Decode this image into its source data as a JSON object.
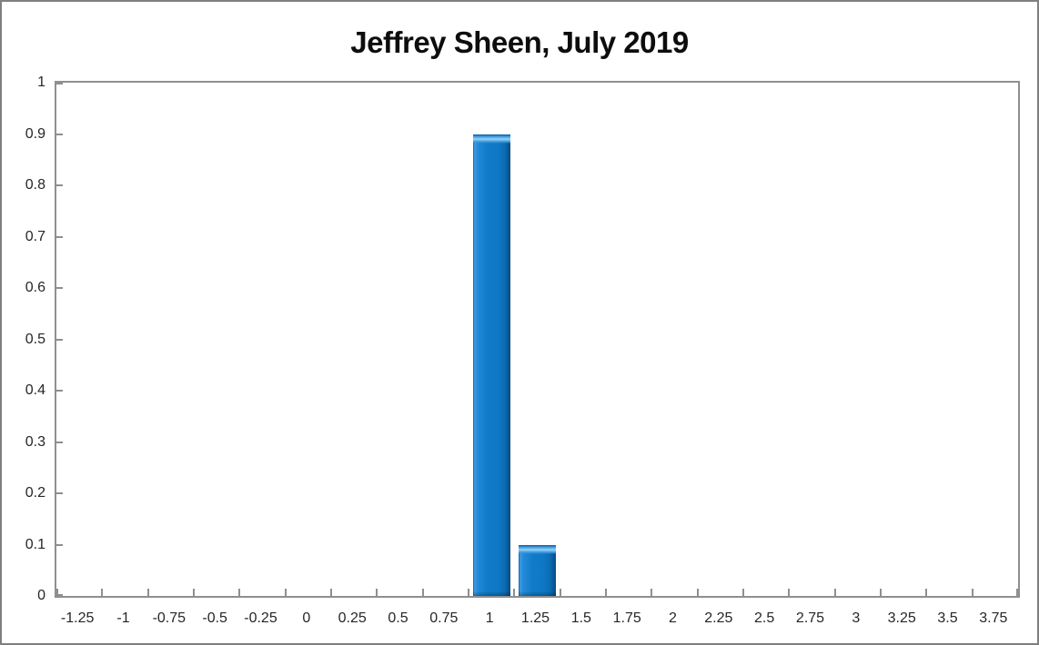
{
  "window": {
    "background": "#ffffff",
    "frame_color": "#7f7f7f"
  },
  "chart_data": {
    "type": "bar",
    "title": "Jeffrey Sheen, July 2019",
    "categories": [
      "-1.25",
      "-1",
      "-0.75",
      "-0.5",
      "-0.25",
      "0",
      "0.25",
      "0.5",
      "0.75",
      "1",
      "1.25",
      "1.5",
      "1.75",
      "2",
      "2.25",
      "2.5",
      "2.75",
      "3",
      "3.25",
      "3.5",
      "3.75"
    ],
    "values": [
      0,
      0,
      0,
      0,
      0,
      0,
      0,
      0,
      0,
      0.9,
      0.1,
      0,
      0,
      0,
      0,
      0,
      0,
      0,
      0,
      0,
      0
    ],
    "xlabel": "",
    "ylabel": "",
    "ylim": [
      0,
      1
    ],
    "ytick_labels": [
      "0",
      "0.1",
      "0.2",
      "0.3",
      "0.4",
      "0.5",
      "0.6",
      "0.7",
      "0.8",
      "0.9",
      "1"
    ],
    "yticks": [
      0,
      0.1,
      0.2,
      0.3,
      0.4,
      0.5,
      0.6,
      0.7,
      0.8,
      0.9,
      1
    ],
    "grid": false,
    "legend": null,
    "bar_width_ratio": 0.82,
    "colors": {
      "bar_fill": "#0e78c4",
      "bar_edge_dark": "#084b82",
      "bar_highlight": "#93d2f8",
      "axis": "#8f8f8f",
      "frame": "#7f7f7f",
      "tick_text": "#262626",
      "title_text": "#0d0d0d",
      "plot_background": "#ffffff"
    }
  }
}
